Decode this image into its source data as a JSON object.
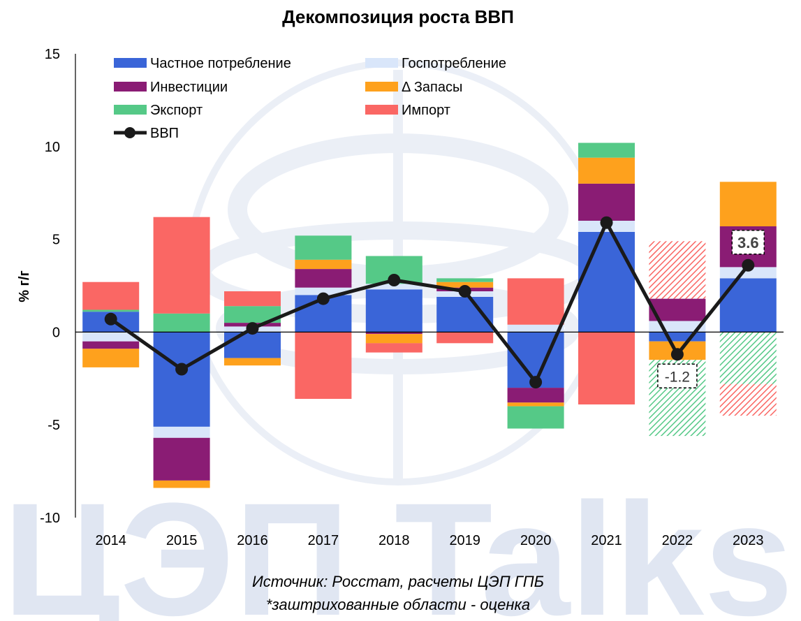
{
  "colors": {
    "private_consumption": "#3a65d8",
    "gov_consumption": "#d9e6fa",
    "investment": "#8a1c74",
    "inventories": "#fea11d",
    "exports": "#55c987",
    "imports": "#fa6764",
    "gdp_line": "#1a1a1a",
    "watermark": "#c7d2e8"
  },
  "watermark_text": "ЦЭП Talks",
  "source": {
    "line1": "Источник: Росстат, расчеты ЦЭП ГПБ",
    "line2": "*заштрихованные области - оценка"
  },
  "chart_data": {
    "type": "bar",
    "stacked": true,
    "title": "Декомпозиция роста ВВП",
    "xlabel": "",
    "ylabel": "% г/г",
    "ylim": [
      -10,
      15
    ],
    "yticks": [
      -10,
      -5,
      0,
      5,
      10,
      15
    ],
    "grid": false,
    "legend_position": "top-left",
    "categories": [
      "2014",
      "2015",
      "2016",
      "2017",
      "2018",
      "2019",
      "2020",
      "2021",
      "2022",
      "2023"
    ],
    "series": [
      {
        "name": "Частное потребление",
        "key": "private_consumption",
        "values": [
          1.1,
          -5.1,
          -1.4,
          2.0,
          2.3,
          1.9,
          -3.0,
          5.4,
          -0.5,
          2.9
        ]
      },
      {
        "name": "Госпотребление",
        "key": "gov_consumption",
        "values": [
          -0.5,
          -0.6,
          0.3,
          0.4,
          0.3,
          0.3,
          0.4,
          0.6,
          0.6,
          0.6
        ]
      },
      {
        "name": "Инвестиции",
        "key": "investment",
        "values": [
          -0.4,
          -2.3,
          0.2,
          1.0,
          -0.1,
          0.2,
          -0.8,
          2.0,
          1.2,
          2.2
        ]
      },
      {
        "name": "Δ Запасы",
        "key": "inventories",
        "values": [
          -1.0,
          -0.4,
          -0.4,
          0.5,
          -0.5,
          0.3,
          -0.2,
          1.4,
          -1.0,
          2.4
        ]
      },
      {
        "name": "Экспорт",
        "key": "exports",
        "values": [
          0.1,
          1.0,
          0.9,
          1.3,
          1.5,
          0.2,
          -1.2,
          0.8,
          -4.1,
          -2.8
        ]
      },
      {
        "name": "Импорт",
        "key": "imports",
        "values": [
          1.5,
          5.2,
          0.8,
          -3.6,
          -0.5,
          -0.6,
          2.5,
          -3.9,
          3.1,
          -1.7
        ]
      }
    ],
    "estimated": {
      "2022": [
        "exports",
        "imports"
      ],
      "2023": [
        "exports",
        "imports"
      ]
    },
    "line": {
      "name": "ВВП",
      "values": [
        0.7,
        -2.0,
        0.2,
        1.8,
        2.8,
        2.2,
        -2.7,
        5.9,
        -1.2,
        3.6
      ]
    },
    "annotations": [
      {
        "category": "2022",
        "text": "-1.2",
        "bold": false
      },
      {
        "category": "2023",
        "text": "3.6",
        "bold": true
      }
    ]
  }
}
